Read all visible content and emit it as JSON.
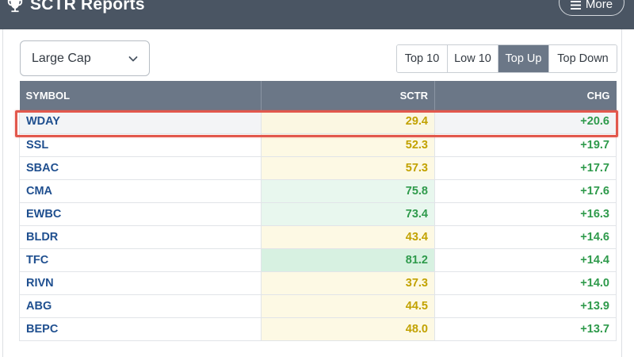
{
  "header": {
    "title": "SCTR Reports",
    "more_label": "More",
    "icon": "trophy-icon"
  },
  "filter": {
    "selected": "Large Cap"
  },
  "tabs": [
    {
      "label": "Top 10",
      "active": false
    },
    {
      "label": "Low 10",
      "active": false
    },
    {
      "label": "Top Up",
      "active": true
    },
    {
      "label": "Top Down",
      "active": false
    }
  ],
  "table": {
    "columns": [
      "SYMBOL",
      "SCTR",
      "CHG"
    ],
    "rows": [
      {
        "symbol": "WDAY",
        "sctr": "29.4",
        "chg": "+20.6",
        "tone": "yellow",
        "highlighted": true
      },
      {
        "symbol": "SSL",
        "sctr": "52.3",
        "chg": "+19.7",
        "tone": "yellow"
      },
      {
        "symbol": "SBAC",
        "sctr": "57.3",
        "chg": "+17.7",
        "tone": "yellow"
      },
      {
        "symbol": "CMA",
        "sctr": "75.8",
        "chg": "+17.6",
        "tone": "green"
      },
      {
        "symbol": "EWBC",
        "sctr": "73.4",
        "chg": "+16.3",
        "tone": "green"
      },
      {
        "symbol": "BLDR",
        "sctr": "43.4",
        "chg": "+14.6",
        "tone": "yellow"
      },
      {
        "symbol": "TFC",
        "sctr": "81.2",
        "chg": "+14.4",
        "tone": "green-strong"
      },
      {
        "symbol": "RIVN",
        "sctr": "37.3",
        "chg": "+14.0",
        "tone": "yellow"
      },
      {
        "symbol": "ABG",
        "sctr": "44.5",
        "chg": "+13.9",
        "tone": "yellow"
      },
      {
        "symbol": "BEPC",
        "sctr": "48.0",
        "chg": "+13.7",
        "tone": "yellow"
      }
    ]
  },
  "colors": {
    "header_bg": "#4a5563",
    "table_header_bg": "#6b7787",
    "symbol": "#1f4f8f",
    "positive": "#2e9a4b",
    "sctr_mid": "#c2a200",
    "highlight": "#e2584d"
  }
}
